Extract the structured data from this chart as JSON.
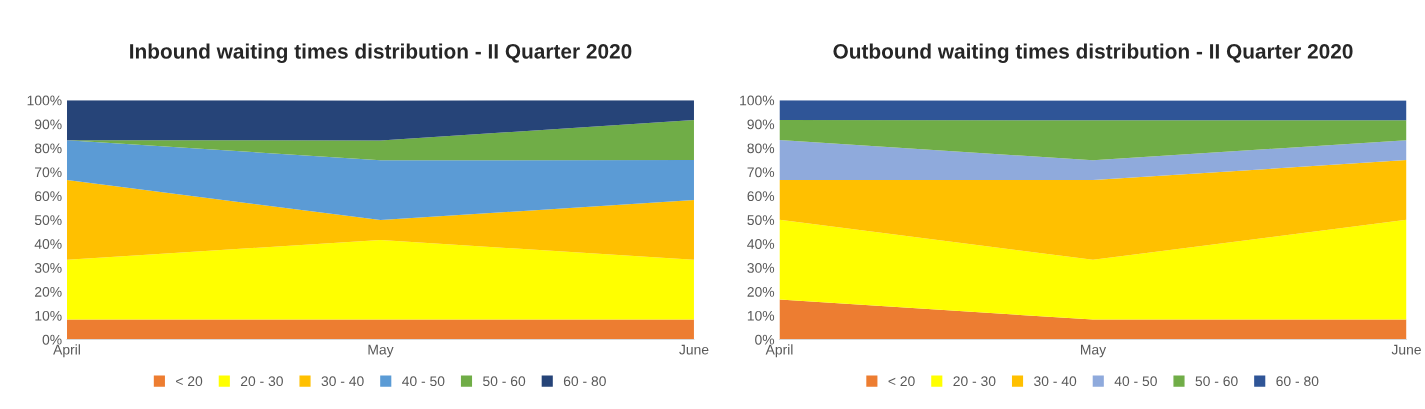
{
  "chart_data": [
    {
      "type": "area",
      "stacked": true,
      "title": "Inbound waiting times distribution - II Quarter 2020",
      "categories": [
        "April",
        "May",
        "June"
      ],
      "ylim": [
        0,
        100
      ],
      "yticks": [
        {
          "value": 0,
          "label": "0%"
        },
        {
          "value": 10,
          "label": "10%"
        },
        {
          "value": 20,
          "label": "20%"
        },
        {
          "value": 30,
          "label": "30%"
        },
        {
          "value": 40,
          "label": "40%"
        },
        {
          "value": 50,
          "label": "50%"
        },
        {
          "value": 60,
          "label": "60%"
        },
        {
          "value": 70,
          "label": "70%"
        },
        {
          "value": 80,
          "label": "80%"
        },
        {
          "value": 90,
          "label": "90%"
        },
        {
          "value": 100,
          "label": "100%"
        }
      ],
      "grid": false,
      "legend": "bottom",
      "series": [
        {
          "name": "< 20",
          "color": "#ed7d31",
          "values": [
            8.3,
            8.3,
            8.3
          ]
        },
        {
          "name": "20 - 30",
          "color": "#ffff00",
          "values": [
            25,
            33.3,
            25
          ]
        },
        {
          "name": "30 - 40",
          "color": "#ffc000",
          "values": [
            33.3,
            8.3,
            25
          ]
        },
        {
          "name": "40 - 50",
          "color": "#5b9bd5",
          "values": [
            16.7,
            25,
            16.7
          ]
        },
        {
          "name": "50 - 60",
          "color": "#70ad47",
          "values": [
            0,
            8.3,
            16.7
          ]
        },
        {
          "name": "60 - 80",
          "color": "#264478",
          "values": [
            16.7,
            16.7,
            8.3
          ]
        }
      ]
    },
    {
      "type": "area",
      "stacked": true,
      "title": "Outbound waiting times distribution - II Quarter 2020",
      "categories": [
        "April",
        "May",
        "June"
      ],
      "ylim": [
        0,
        100
      ],
      "yticks": [
        {
          "value": 0,
          "label": "0%"
        },
        {
          "value": 10,
          "label": "10%"
        },
        {
          "value": 20,
          "label": "20%"
        },
        {
          "value": 30,
          "label": "30%"
        },
        {
          "value": 40,
          "label": "40%"
        },
        {
          "value": 50,
          "label": "50%"
        },
        {
          "value": 60,
          "label": "60%"
        },
        {
          "value": 70,
          "label": "70%"
        },
        {
          "value": 80,
          "label": "80%"
        },
        {
          "value": 90,
          "label": "90%"
        },
        {
          "value": 100,
          "label": "100%"
        }
      ],
      "grid": false,
      "legend": "bottom",
      "series": [
        {
          "name": "< 20",
          "color": "#ed7d31",
          "values": [
            16.7,
            8.3,
            8.3
          ]
        },
        {
          "name": "20 - 30",
          "color": "#ffff00",
          "values": [
            33.3,
            25,
            41.7
          ]
        },
        {
          "name": "30 - 40",
          "color": "#ffc000",
          "values": [
            16.7,
            33.3,
            25
          ]
        },
        {
          "name": "40 - 50",
          "color": "#8faadc",
          "values": [
            16.7,
            8.3,
            8.3
          ]
        },
        {
          "name": "50 - 60",
          "color": "#70ad47",
          "values": [
            8.3,
            16.7,
            8.3
          ]
        },
        {
          "name": "60 - 80",
          "color": "#2f5597",
          "values": [
            8.3,
            8.3,
            8.3
          ]
        }
      ]
    }
  ]
}
